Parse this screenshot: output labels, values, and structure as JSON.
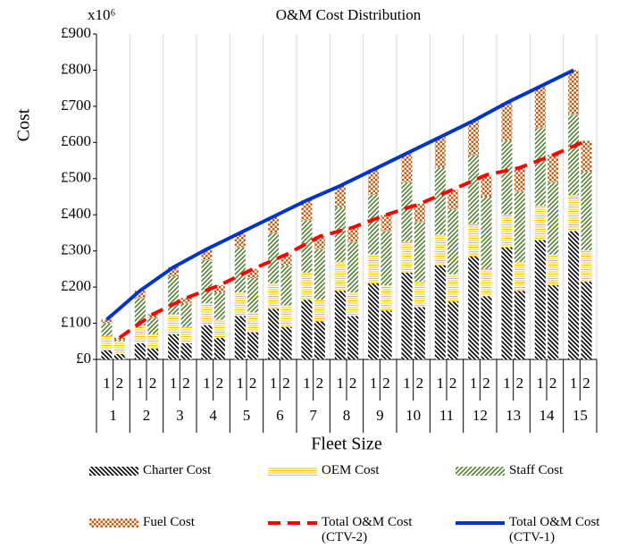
{
  "chart_data": {
    "type": "bar",
    "stacked": true,
    "title": "O&M Cost Distribution",
    "multiplier": "x10⁶",
    "y_label": "Cost",
    "x_label": "Fleet Size",
    "categories": [
      "1",
      "2",
      "3",
      "4",
      "5",
      "6",
      "7",
      "8",
      "9",
      "10",
      "11",
      "12",
      "13",
      "14",
      "15"
    ],
    "subcategories": [
      "1",
      "2"
    ],
    "ylim": [
      0,
      900
    ],
    "yticks": [
      {
        "value": 0,
        "label": "£0"
      },
      {
        "value": 100,
        "label": "£100"
      },
      {
        "value": 200,
        "label": "£200"
      },
      {
        "value": 300,
        "label": "£300"
      },
      {
        "value": 400,
        "label": "£400"
      },
      {
        "value": 500,
        "label": "£500"
      },
      {
        "value": 600,
        "label": "£600"
      },
      {
        "value": 700,
        "label": "£700"
      },
      {
        "value": 800,
        "label": "£800"
      },
      {
        "value": 900,
        "label": "£900"
      }
    ],
    "grid": true,
    "series": [
      {
        "name": "Charter Cost",
        "color": "#000000",
        "pattern": "back-diagonal",
        "values": [
          [
            25,
            15
          ],
          [
            45,
            30
          ],
          [
            70,
            45
          ],
          [
            95,
            60
          ],
          [
            120,
            75
          ],
          [
            140,
            90
          ],
          [
            165,
            105
          ],
          [
            190,
            120
          ],
          [
            210,
            135
          ],
          [
            240,
            145
          ],
          [
            260,
            160
          ],
          [
            285,
            175
          ],
          [
            310,
            190
          ],
          [
            330,
            205
          ],
          [
            355,
            215
          ]
        ]
      },
      {
        "name": "OEM Cost",
        "color": "#ffc000",
        "pattern": "horizontal",
        "values": [
          [
            40,
            35
          ],
          [
            50,
            40
          ],
          [
            55,
            45
          ],
          [
            60,
            50
          ],
          [
            65,
            55
          ],
          [
            70,
            60
          ],
          [
            75,
            60
          ],
          [
            80,
            65
          ],
          [
            80,
            70
          ],
          [
            85,
            70
          ],
          [
            85,
            75
          ],
          [
            90,
            75
          ],
          [
            90,
            80
          ],
          [
            95,
            85
          ],
          [
            100,
            87
          ]
        ]
      },
      {
        "name": "Staff Cost",
        "color": "#548235",
        "pattern": "diagonal",
        "values": [
          [
            35,
            5
          ],
          [
            75,
            45
          ],
          [
            105,
            65
          ],
          [
            120,
            75
          ],
          [
            125,
            95
          ],
          [
            140,
            110
          ],
          [
            145,
            140
          ],
          [
            150,
            140
          ],
          [
            165,
            150
          ],
          [
            165,
            165
          ],
          [
            185,
            180
          ],
          [
            190,
            200
          ],
          [
            205,
            195
          ],
          [
            215,
            200
          ],
          [
            222,
            217
          ]
        ]
      },
      {
        "name": "Fuel Cost",
        "color": "#c55a11",
        "pattern": "checker",
        "values": [
          [
            10,
            5
          ],
          [
            20,
            10
          ],
          [
            25,
            15
          ],
          [
            30,
            20
          ],
          [
            40,
            25
          ],
          [
            45,
            30
          ],
          [
            55,
            35
          ],
          [
            60,
            40
          ],
          [
            70,
            45
          ],
          [
            80,
            50
          ],
          [
            85,
            55
          ],
          [
            95,
            60
          ],
          [
            105,
            65
          ],
          [
            115,
            75
          ],
          [
            123,
            86
          ]
        ]
      },
      {
        "name": "Total O&M Cost (CTV-2)",
        "type": "line",
        "color": "#ff0000",
        "dashed": true,
        "subcategory": 1,
        "values": [
          60,
          125,
          170,
          205,
          250,
          290,
          340,
          365,
          400,
          430,
          470,
          510,
          530,
          565,
          605
        ]
      },
      {
        "name": "Total O&M Cost (CTV-1)",
        "type": "line",
        "color": "#0033cc",
        "dashed": false,
        "subcategory": 0,
        "values": [
          110,
          190,
          255,
          305,
          350,
          395,
          440,
          480,
          525,
          570,
          615,
          660,
          710,
          755,
          800
        ]
      }
    ]
  }
}
